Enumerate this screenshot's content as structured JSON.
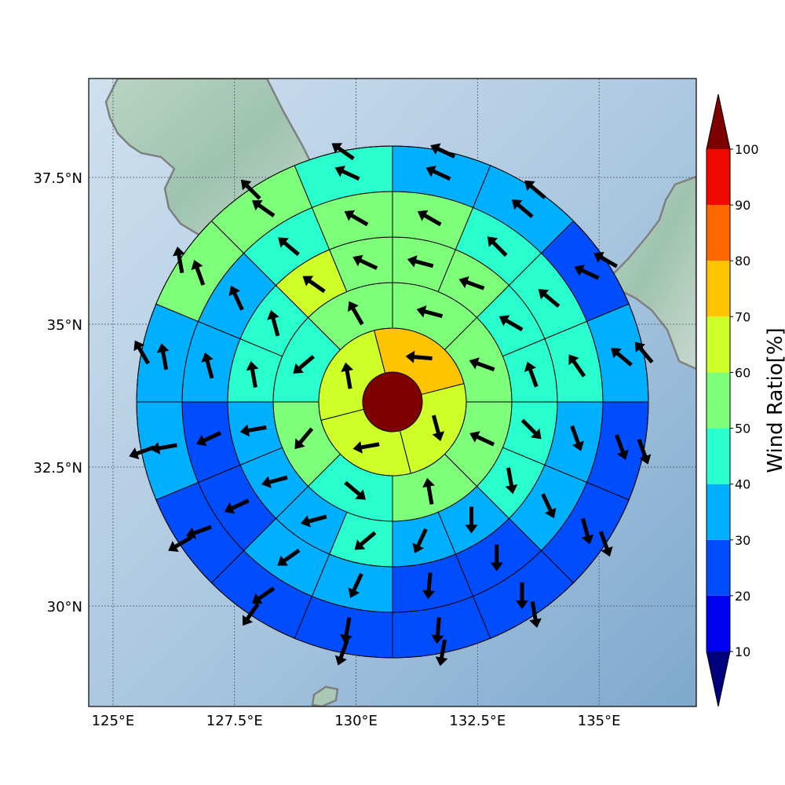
{
  "chart_data": {
    "type": "heatmap",
    "title": "",
    "map": {
      "lon_range": [
        124.5,
        137.0
      ],
      "lat_range": [
        28.0,
        39.2
      ],
      "center": [
        130.8,
        33.65
      ],
      "projection": "mercator",
      "grid": true,
      "coastline_color": "#808080"
    },
    "xaxis": {
      "ticks": [
        125,
        127.5,
        130,
        132.5,
        135
      ],
      "tick_labels": [
        "125°E",
        "127.5°E",
        "130°E",
        "132.5°E",
        "135°E"
      ]
    },
    "yaxis": {
      "ticks": [
        30,
        32.5,
        35,
        37.5
      ],
      "tick_labels": [
        "30°N",
        "32.5°N",
        "35°N",
        "37.5°N"
      ]
    },
    "colorbar": {
      "label": "Wind Ratio[%]",
      "ticks": [
        10,
        20,
        30,
        40,
        50,
        60,
        70,
        80,
        90,
        100
      ],
      "tick_labels": [
        "10",
        "20",
        "30",
        "40",
        "50",
        "60",
        "70",
        "80",
        "90",
        "100"
      ],
      "levels": [
        0,
        10,
        20,
        30,
        40,
        50,
        60,
        70,
        80,
        90,
        100,
        110
      ],
      "colors": [
        "#00007f",
        "#0000f1",
        "#004cff",
        "#00b0ff",
        "#29ffce",
        "#7dff7a",
        "#ceff29",
        "#ffc400",
        "#ff6800",
        "#f10800",
        "#7f0000"
      ],
      "extend": "both"
    },
    "rings": [
      {
        "name": "center",
        "sectors": 1,
        "values": [
          105
        ]
      },
      {
        "name": "ring-1",
        "sectors": 4,
        "values": [
          70,
          65,
          62,
          60
        ]
      },
      {
        "name": "ring-2",
        "sectors": 8,
        "values": [
          55,
          55,
          55,
          55,
          42,
          55,
          40,
          55
        ]
      },
      {
        "name": "ring-3",
        "sectors": 16,
        "values": [
          55,
          55,
          45,
          45,
          45,
          45,
          35,
          35,
          45,
          35,
          35,
          38,
          45,
          45,
          65,
          55
        ]
      },
      {
        "name": "ring-4",
        "sectors": 16,
        "values": [
          55,
          45,
          45,
          45,
          35,
          35,
          25,
          25,
          35,
          35,
          25,
          25,
          35,
          35,
          45,
          55
        ]
      },
      {
        "name": "ring-5",
        "sectors": 16,
        "values": [
          35,
          35,
          25,
          35,
          25,
          25,
          25,
          25,
          25,
          25,
          25,
          35,
          35,
          55,
          55,
          45
        ]
      },
      {
        "name": "ring-6",
        "sectors": 16,
        "values": [
          35,
          25,
          25,
          35,
          35,
          25,
          15,
          25,
          25,
          25,
          25,
          25,
          25,
          35,
          55,
          45
        ]
      }
    ],
    "arrows": [
      {
        "ring": 1,
        "directions": [
          275,
          165,
          260,
          350
        ]
      },
      {
        "ring": 2,
        "directions": [
          285,
          290,
          295,
          350,
          130,
          220,
          230,
          330
        ]
      },
      {
        "ring": 3,
        "directions": [
          285,
          290,
          300,
          340,
          135,
          170,
          180,
          205,
          230,
          255,
          255,
          260,
          350,
          345,
          305,
          295
        ]
      },
      {
        "ring": 4,
        "directions": [
          300,
          315,
          310,
          325,
          160,
          155,
          180,
          185,
          205,
          235,
          245,
          245,
          345,
          335,
          310,
          300
        ]
      },
      {
        "ring": 5,
        "directions": [
          295,
          310,
          295,
          310,
          160,
          165,
          180,
          185,
          190,
          235,
          250,
          260,
          350,
          340,
          305,
          295
        ]
      },
      {
        "ring": 6,
        "directions": [
          295,
          310,
          300,
          320,
          160,
          160,
          170,
          190,
          200,
          215,
          240,
          250,
          330,
          350,
          315,
          305
        ]
      }
    ]
  }
}
